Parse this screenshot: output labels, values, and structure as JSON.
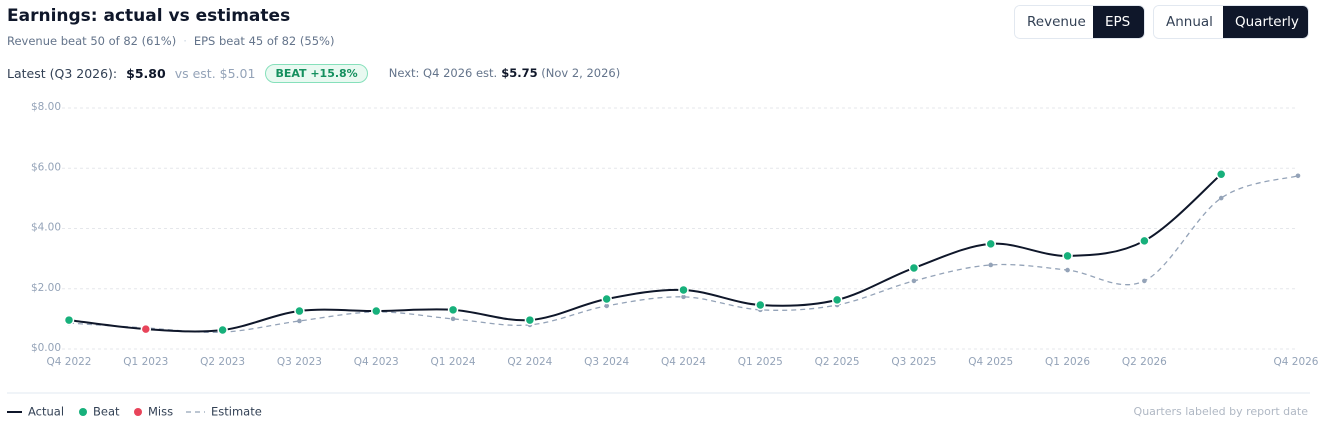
{
  "header": {
    "title": "Earnings: actual vs estimates",
    "subtitle": [
      "Revenue beat 50 of 82 (61%)",
      "EPS beat 45 of 82 (55%)"
    ],
    "subtitle_separator": "·"
  },
  "controls": {
    "metric": [
      "Revenue",
      "EPS"
    ],
    "period": [
      "Annual",
      "Quarterly"
    ]
  },
  "latest": {
    "label": "Latest (Q3 2026):",
    "value": "$5.80",
    "estimate": "vs est. $5.01",
    "badge": "BEAT +15.8%",
    "next": "Next: Q4 2026 est.",
    "next_value": "$5.75",
    "next_date": "(Nov 2, 2026)"
  },
  "chart_data": {
    "type": "line",
    "categories": [
      "Q4 2022",
      "Q1 2023",
      "Q2 2023",
      "Q3 2023",
      "Q4 2023",
      "Q1 2024",
      "Q2 2024",
      "Q3 2024",
      "Q4 2024",
      "Q1 2025",
      "Q2 2025",
      "Q3 2025",
      "Q4 2025",
      "Q1 2026",
      "Q2 2026",
      null,
      "Q4 2026"
    ],
    "series": [
      {
        "name": "Actual",
        "color": "#0f172a",
        "values": [
          0.96,
          0.66,
          0.63,
          1.26,
          1.26,
          1.3,
          0.96,
          1.66,
          1.96,
          1.46,
          1.63,
          2.69,
          3.49,
          3.09,
          3.59,
          5.8,
          null
        ]
      },
      {
        "name": "Estimate",
        "color": "#94a3b8",
        "dashed": true,
        "values": [
          0.86,
          0.7,
          0.56,
          0.93,
          1.23,
          1.0,
          0.8,
          1.43,
          1.73,
          1.3,
          1.46,
          2.26,
          2.79,
          2.62,
          2.26,
          5.01,
          5.75
        ]
      }
    ],
    "markers": [
      {
        "name": "Beat",
        "color": "#17b07b"
      },
      {
        "name": "Miss",
        "color": "#e8445a"
      }
    ],
    "ylim": [
      0,
      8
    ],
    "yticks": [
      {
        "value": 0,
        "label": "$0.00"
      },
      {
        "value": 2,
        "label": "$2.00"
      },
      {
        "value": 4,
        "label": "$4.00"
      },
      {
        "value": 6,
        "label": "$6.00"
      },
      {
        "value": 8,
        "label": "$8.00"
      }
    ],
    "grid": true,
    "legend": "bottom-left",
    "note": "Quarters labeled by report date"
  }
}
